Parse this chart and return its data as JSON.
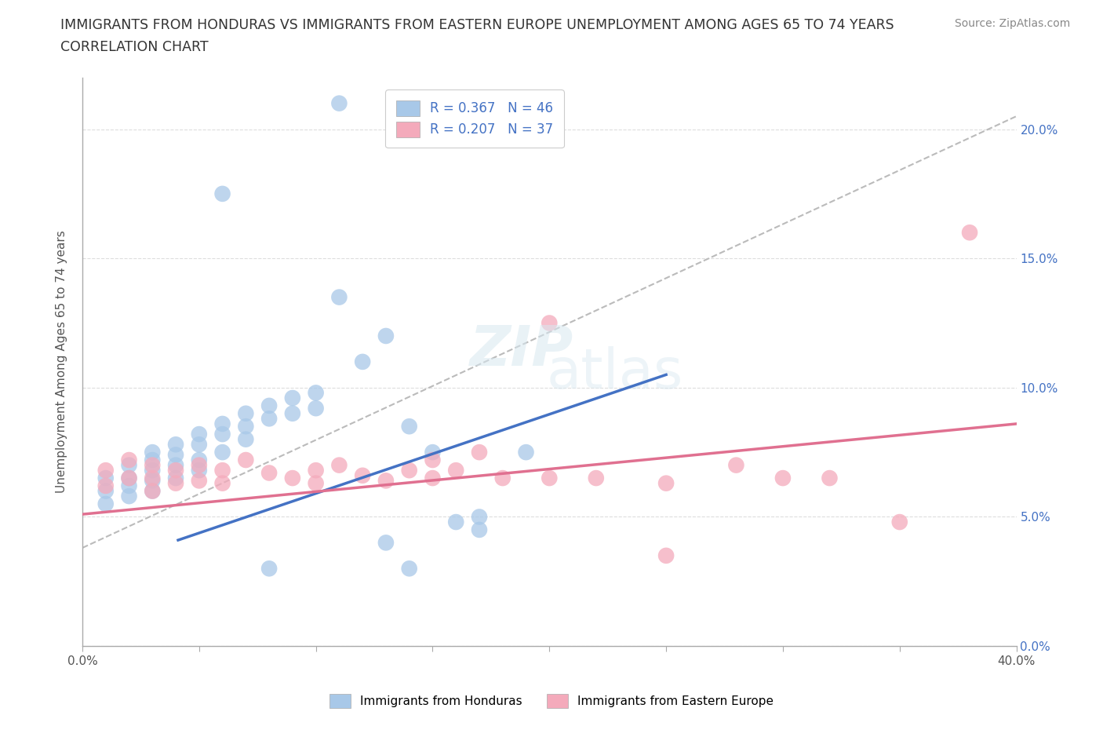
{
  "title_line1": "IMMIGRANTS FROM HONDURAS VS IMMIGRANTS FROM EASTERN EUROPE UNEMPLOYMENT AMONG AGES 65 TO 74 YEARS",
  "title_line2": "CORRELATION CHART",
  "source_text": "Source: ZipAtlas.com",
  "ylabel": "Unemployment Among Ages 65 to 74 years",
  "legend_label1": "Immigrants from Honduras",
  "legend_label2": "Immigrants from Eastern Europe",
  "R1": 0.367,
  "N1": 46,
  "R2": 0.207,
  "N2": 37,
  "color_blue": "#A8C8E8",
  "color_pink": "#F4AABB",
  "color_blue_line": "#4472C4",
  "color_pink_line": "#E07090",
  "color_dashed": "#BBBBBB",
  "xlim": [
    0,
    0.4
  ],
  "ylim": [
    0,
    0.22
  ],
  "blue_trend": [
    0.041,
    0.041,
    0.25,
    0.105
  ],
  "pink_trend": [
    0.0,
    0.051,
    0.4,
    0.086
  ],
  "dash_trend": [
    0.0,
    0.038,
    0.4,
    0.205
  ],
  "blue_x": [
    0.01,
    0.01,
    0.01,
    0.02,
    0.02,
    0.02,
    0.02,
    0.03,
    0.03,
    0.03,
    0.03,
    0.03,
    0.04,
    0.04,
    0.04,
    0.04,
    0.05,
    0.05,
    0.05,
    0.05,
    0.06,
    0.06,
    0.06,
    0.07,
    0.07,
    0.07,
    0.08,
    0.08,
    0.09,
    0.09,
    0.1,
    0.1,
    0.11,
    0.12,
    0.13,
    0.14,
    0.15,
    0.16,
    0.17,
    0.19,
    0.06,
    0.11,
    0.14,
    0.08,
    0.17,
    0.13
  ],
  "blue_y": [
    0.065,
    0.06,
    0.055,
    0.07,
    0.065,
    0.062,
    0.058,
    0.075,
    0.072,
    0.068,
    0.064,
    0.06,
    0.078,
    0.074,
    0.07,
    0.065,
    0.082,
    0.078,
    0.072,
    0.068,
    0.086,
    0.082,
    0.075,
    0.09,
    0.085,
    0.08,
    0.093,
    0.088,
    0.096,
    0.09,
    0.098,
    0.092,
    0.21,
    0.11,
    0.12,
    0.085,
    0.075,
    0.048,
    0.045,
    0.075,
    0.175,
    0.135,
    0.03,
    0.03,
    0.05,
    0.04
  ],
  "pink_x": [
    0.01,
    0.01,
    0.02,
    0.02,
    0.03,
    0.03,
    0.03,
    0.04,
    0.04,
    0.05,
    0.05,
    0.06,
    0.06,
    0.07,
    0.08,
    0.09,
    0.1,
    0.1,
    0.11,
    0.12,
    0.13,
    0.14,
    0.15,
    0.15,
    0.16,
    0.17,
    0.18,
    0.2,
    0.22,
    0.25,
    0.28,
    0.3,
    0.32,
    0.35,
    0.38,
    0.2,
    0.25
  ],
  "pink_y": [
    0.068,
    0.062,
    0.072,
    0.065,
    0.07,
    0.065,
    0.06,
    0.068,
    0.063,
    0.07,
    0.064,
    0.068,
    0.063,
    0.072,
    0.067,
    0.065,
    0.068,
    0.063,
    0.07,
    0.066,
    0.064,
    0.068,
    0.072,
    0.065,
    0.068,
    0.075,
    0.065,
    0.065,
    0.065,
    0.063,
    0.07,
    0.065,
    0.065,
    0.048,
    0.16,
    0.125,
    0.035
  ]
}
